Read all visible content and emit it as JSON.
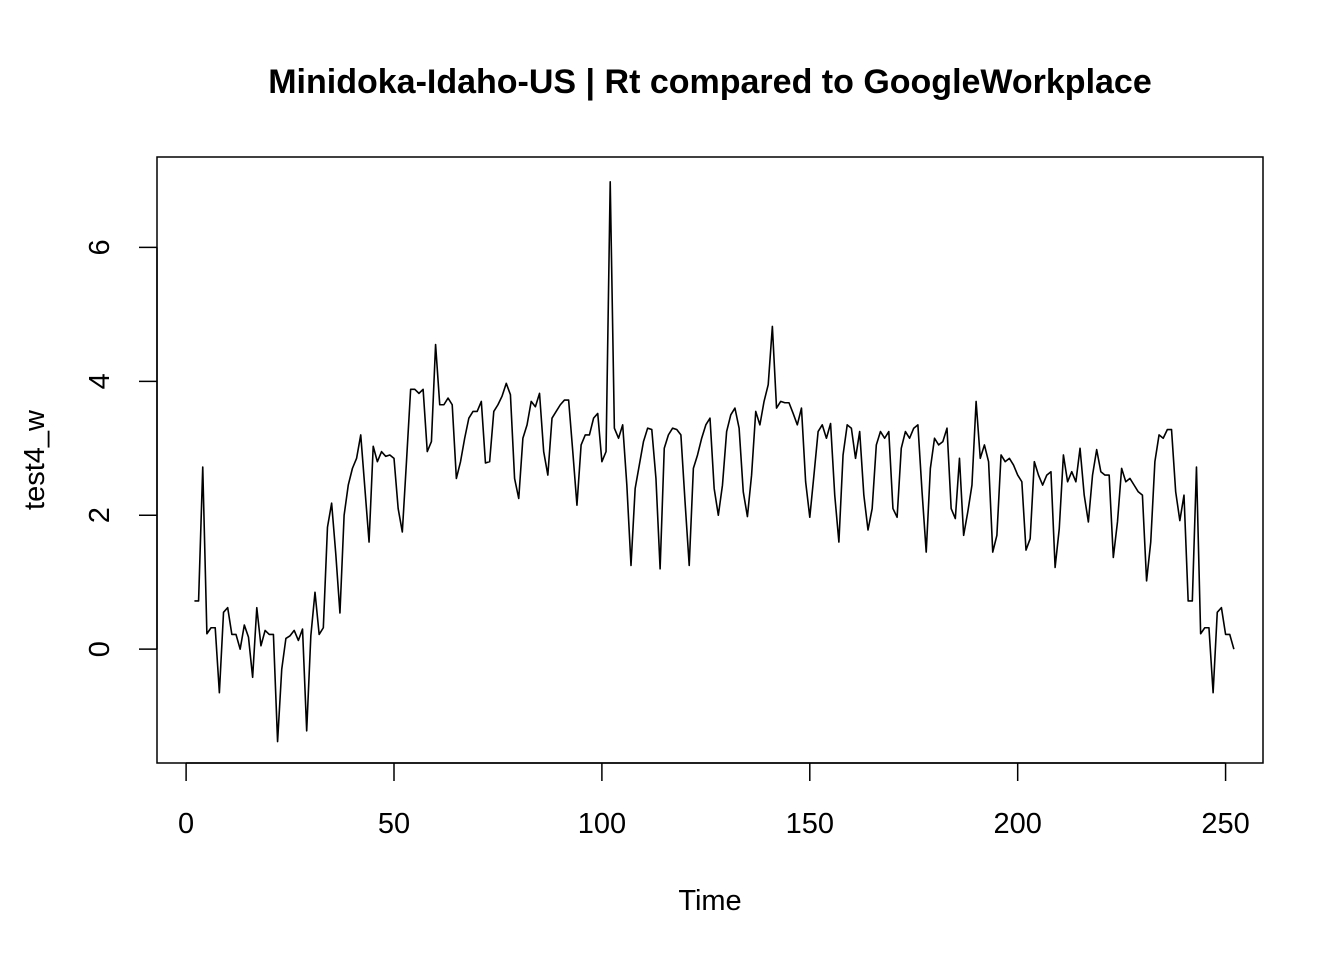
{
  "chart_data": {
    "type": "line",
    "title": "Minidoka-Idaho-US | Rt compared to GoogleWorkplace",
    "xlabel": "Time",
    "ylabel": "test4_w",
    "xlim": [
      -7,
      259
    ],
    "ylim": [
      -1.7,
      7.35
    ],
    "x_ticks": [
      0,
      50,
      100,
      150,
      200,
      250
    ],
    "y_ticks": [
      0,
      2,
      4,
      6
    ],
    "x_tick_labels": [
      "0",
      "50",
      "100",
      "150",
      "200",
      "250"
    ],
    "y_tick_labels": [
      "0",
      "2",
      "4",
      "6"
    ],
    "grid": false,
    "legend": "none",
    "line_color": "#000000",
    "series": [
      {
        "x_start": 2,
        "values": [
          0.72,
          0.72,
          2.72,
          0.23,
          0.32,
          0.32,
          -0.65,
          0.55,
          0.62,
          0.22,
          0.22,
          0.0,
          0.36,
          0.18,
          -0.42,
          0.62,
          0.05,
          0.28,
          0.22,
          0.22,
          -1.38,
          -0.3,
          0.16,
          0.2,
          0.28,
          0.13,
          0.3,
          -1.22,
          0.2,
          0.85,
          0.22,
          0.32,
          1.82,
          2.18,
          1.42,
          0.54,
          2.0,
          2.45,
          2.7,
          2.85,
          3.2,
          2.4,
          1.6,
          3.03,
          2.8,
          2.95,
          2.88,
          2.9,
          2.85,
          2.1,
          1.75,
          2.8,
          3.88,
          3.88,
          3.82,
          3.88,
          2.95,
          3.1,
          4.55,
          3.65,
          3.65,
          3.75,
          3.65,
          2.55,
          2.8,
          3.15,
          3.45,
          3.55,
          3.55,
          3.7,
          2.78,
          2.8,
          3.55,
          3.65,
          3.78,
          3.97,
          3.8,
          2.55,
          2.25,
          3.15,
          3.35,
          3.7,
          3.62,
          3.82,
          2.95,
          2.6,
          3.45,
          3.55,
          3.65,
          3.72,
          3.72,
          2.95,
          2.15,
          3.05,
          3.2,
          3.2,
          3.45,
          3.52,
          2.8,
          2.95,
          6.98,
          3.3,
          3.15,
          3.35,
          2.45,
          1.25,
          2.4,
          2.75,
          3.1,
          3.3,
          3.28,
          2.55,
          1.2,
          3.0,
          3.2,
          3.3,
          3.28,
          3.2,
          2.2,
          1.25,
          2.7,
          2.9,
          3.15,
          3.35,
          3.45,
          2.4,
          2.0,
          2.45,
          3.25,
          3.5,
          3.6,
          3.3,
          2.35,
          1.98,
          2.6,
          3.55,
          3.35,
          3.7,
          3.95,
          4.82,
          3.6,
          3.7,
          3.68,
          3.68,
          3.52,
          3.35,
          3.6,
          2.5,
          1.97,
          2.6,
          3.25,
          3.35,
          3.15,
          3.37,
          2.3,
          1.6,
          2.9,
          3.35,
          3.3,
          2.85,
          3.25,
          2.3,
          1.78,
          2.1,
          3.05,
          3.25,
          3.15,
          3.25,
          2.1,
          1.97,
          3.0,
          3.25,
          3.15,
          3.3,
          3.35,
          2.35,
          1.45,
          2.7,
          3.15,
          3.05,
          3.1,
          3.3,
          2.1,
          1.95,
          2.85,
          1.7,
          2.05,
          2.45,
          3.7,
          2.85,
          3.05,
          2.8,
          1.45,
          1.7,
          2.9,
          2.8,
          2.85,
          2.75,
          2.6,
          2.5,
          1.48,
          1.65,
          2.8,
          2.6,
          2.45,
          2.6,
          2.65,
          1.22,
          1.8,
          2.9,
          2.5,
          2.65,
          2.5,
          3.0,
          2.3,
          1.9,
          2.6,
          2.98,
          2.65,
          2.6,
          2.6,
          1.37,
          1.9,
          2.7,
          2.5,
          2.55,
          2.45,
          2.35,
          2.3,
          1.02,
          1.6,
          2.8,
          3.2,
          3.15,
          3.28,
          3.28,
          2.35,
          1.92,
          2.3,
          0.72,
          0.72,
          2.72,
          0.23,
          0.32,
          0.32,
          -0.65,
          0.55,
          0.62,
          0.22,
          0.22,
          0.0
        ]
      }
    ]
  }
}
